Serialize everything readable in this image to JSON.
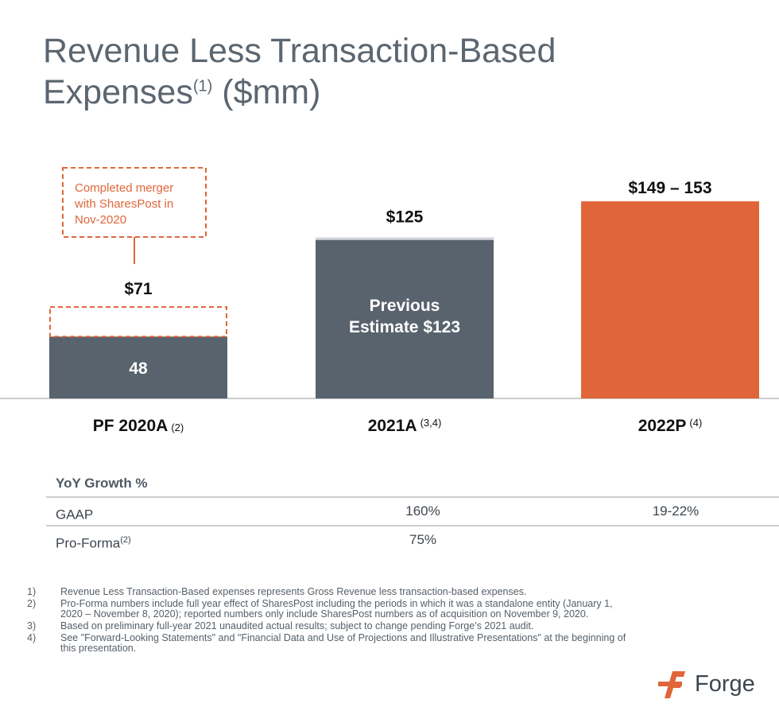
{
  "title": {
    "main": "Revenue Less Transaction-Based Expenses",
    "sup": "(1)",
    "suffix": " ($mm)"
  },
  "chart_data": {
    "type": "bar",
    "categories": [
      "PF 2020A",
      "2021A",
      "2022P"
    ],
    "category_sups": [
      "(2)",
      "(3,4)",
      "(4)"
    ],
    "values": [
      71,
      125,
      153
    ],
    "components": [
      {
        "value": 48,
        "label": "48"
      }
    ],
    "value_labels": [
      "$71",
      "$125",
      "$149 – 153"
    ],
    "inner_labels": [
      "48",
      "Previous Estimate $123",
      ""
    ],
    "previous_estimate": 123,
    "annotation": "Completed merger with SharesPost in Nov-2020",
    "colors": {
      "slate": "#58636e",
      "orange": "#e0663a",
      "dashed": "#e0663a",
      "axis": "#cccccc",
      "cap": "#d0d4d8"
    },
    "ylim": [
      0,
      160
    ]
  },
  "yoy": {
    "header": "YoY Growth %",
    "rows": [
      {
        "label": "GAAP",
        "sup": "",
        "c1": "160%",
        "c2": "19-22%"
      },
      {
        "label": "Pro-Forma",
        "sup": "(2)",
        "c1": "75%",
        "c2": ""
      }
    ]
  },
  "footnotes": [
    {
      "num": "1)",
      "text": "Revenue Less Transaction-Based expenses represents Gross Revenue less transaction-based expenses."
    },
    {
      "num": "2)",
      "text": "Pro-Forma numbers include full year effect of SharesPost including the periods in which it was a standalone entity (January 1, 2020 – November 8, 2020); reported numbers only include SharesPost numbers as of acquisition on November 9, 2020."
    },
    {
      "num": "3)",
      "text": "Based on preliminary full-year 2021 unaudited actual results; subject to change pending Forge’s 2021 audit."
    },
    {
      "num": "4)",
      "text": "See \"Forward-Looking Statements\" and \"Financial Data and Use of Projections and Illustrative Presentations\" at the beginning of this presentation."
    }
  ],
  "logo": {
    "text": "Forge",
    "icon": "forge-logo-icon"
  }
}
